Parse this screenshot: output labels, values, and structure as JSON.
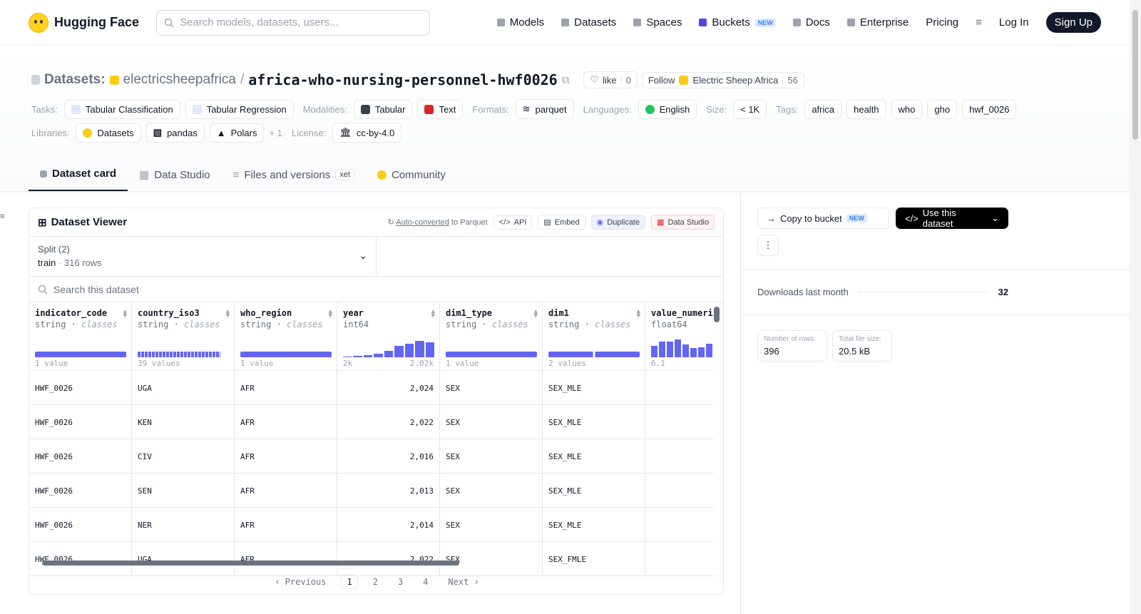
{
  "nav": {
    "brand": "Hugging Face",
    "search_placeholder": "Search models, datasets, users...",
    "links": [
      "Models",
      "Datasets",
      "Spaces",
      "Buckets",
      "Docs",
      "Enterprise",
      "Pricing"
    ],
    "new_badge": "NEW",
    "login": "Log In",
    "signup": "Sign Up"
  },
  "header": {
    "section": "Datasets:",
    "user": "electricsheepafrica",
    "sep": "/",
    "repo": "africa-who-nursing-personnel-hwf0026",
    "like_label": "like",
    "like_count": "0",
    "follow_label": "Follow",
    "org": "Electric Sheep Africa",
    "followers": "56"
  },
  "tags": {
    "tasks_label": "Tasks:",
    "tasks": [
      "Tabular Classification",
      "Tabular Regression"
    ],
    "modalities_label": "Modalities:",
    "modalities": [
      "Tabular",
      "Text"
    ],
    "formats_label": "Formats:",
    "formats": [
      "parquet"
    ],
    "languages_label": "Languages:",
    "languages": [
      "English"
    ],
    "size_label": "Size:",
    "size": "< 1K",
    "tags_label": "Tags:",
    "tags": [
      "africa",
      "health",
      "who",
      "gho",
      "hwf_0026"
    ],
    "libraries_label": "Libraries:",
    "libraries": [
      "Datasets",
      "pandas",
      "Polars"
    ],
    "libraries_more": "+ 1",
    "license_label": "License:",
    "license": "cc-by-4.0"
  },
  "tabs": [
    "Dataset card",
    "Data Studio",
    "Files and versions",
    "Community"
  ],
  "tab_xet": "xet",
  "viewer": {
    "title": "Dataset Viewer",
    "auto_converted": "Auto-converted",
    "to_parquet": "to Parquet",
    "buttons": [
      "API",
      "Embed",
      "Duplicate",
      "Data Studio"
    ],
    "split_label": "Split (2)",
    "split_name": "train",
    "split_rows": "316 rows",
    "search_placeholder": "Search this dataset",
    "columns": [
      {
        "name": "indicator_code",
        "type": "string",
        "kind": "classes",
        "stat": "1 value"
      },
      {
        "name": "country_iso3",
        "type": "string",
        "kind": "classes",
        "stat": "39 values"
      },
      {
        "name": "who_region",
        "type": "string",
        "kind": "classes",
        "stat": "1 value"
      },
      {
        "name": "year",
        "type": "int64",
        "kind": "",
        "stat": "2k",
        "stat_max": "2.02k"
      },
      {
        "name": "dim1_type",
        "type": "string",
        "kind": "classes",
        "stat": "1 value"
      },
      {
        "name": "dim1",
        "type": "string",
        "kind": "classes",
        "stat": "2 values"
      },
      {
        "name": "value_numeri",
        "type": "float64",
        "kind": "",
        "stat": "6.1"
      }
    ],
    "rows": [
      [
        "HWF_0026",
        "UGA",
        "AFR",
        "2,024",
        "SEX",
        "SEX_MLE"
      ],
      [
        "HWF_0026",
        "KEN",
        "AFR",
        "2,022",
        "SEX",
        "SEX_MLE"
      ],
      [
        "HWF_0026",
        "CIV",
        "AFR",
        "2,016",
        "SEX",
        "SEX_MLE"
      ],
      [
        "HWF_0026",
        "SEN",
        "AFR",
        "2,013",
        "SEX",
        "SEX_MLE"
      ],
      [
        "HWF_0026",
        "NER",
        "AFR",
        "2,014",
        "SEX",
        "SEX_MLE"
      ],
      [
        "HWF_0026",
        "UGA",
        "AFR",
        "2,022",
        "SEX",
        "SEX_FMLE"
      ]
    ],
    "year_hist": [
      0.05,
      0.07,
      0.1,
      0.2,
      0.35,
      0.6,
      0.75,
      0.9,
      0.8
    ],
    "value_hist": [
      0.6,
      0.85,
      0.85,
      0.95,
      0.7,
      0.5,
      0.55,
      0.75
    ],
    "pager": {
      "prev": "Previous",
      "pages": [
        "1",
        "2",
        "3",
        "4"
      ],
      "next": "Next"
    }
  },
  "sidebar": {
    "copy_bucket": "Copy to bucket",
    "use_dataset": "Use this dataset",
    "downloads_label": "Downloads last month",
    "downloads": "32",
    "rows_label": "Number of rows:",
    "rows": "396",
    "size_label": "Total file size:",
    "size": "20.5 kB"
  }
}
